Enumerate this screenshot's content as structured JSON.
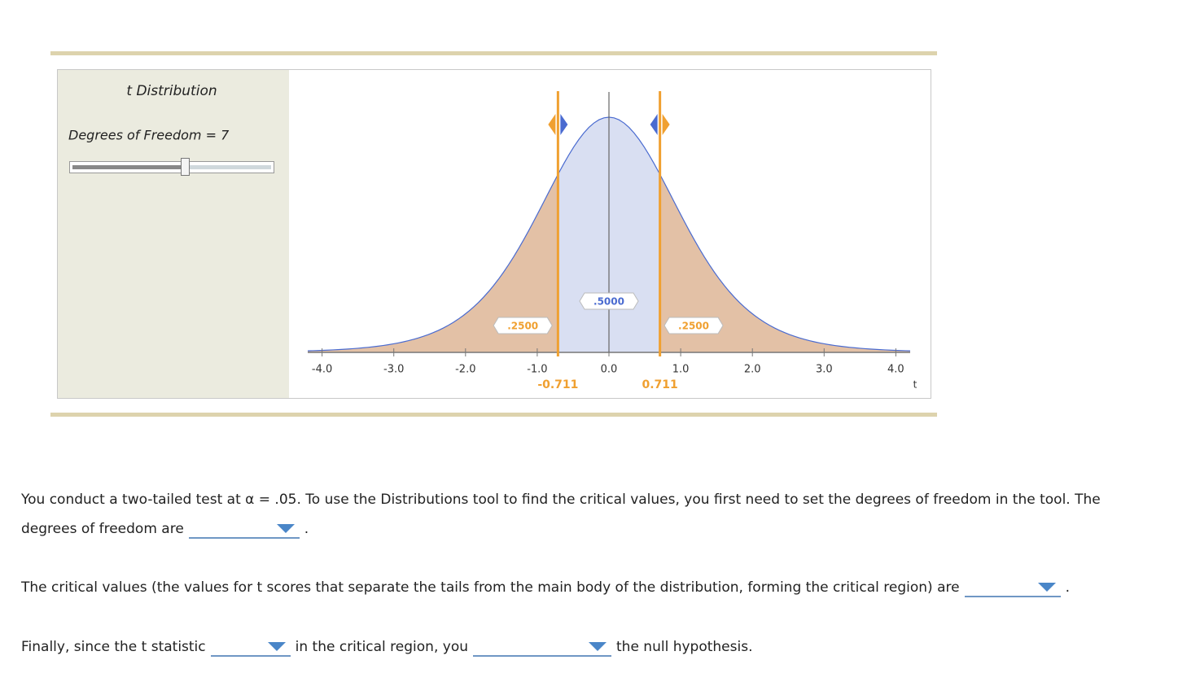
{
  "panel": {
    "title": "t Distribution",
    "df_text": "Degrees of Freedom = 7"
  },
  "chart_data": {
    "type": "density",
    "df": 7,
    "xlim": [
      -4.2,
      4.2
    ],
    "xticks": [
      {
        "value": -4,
        "label": "-4.0"
      },
      {
        "value": -3,
        "label": "-3.0"
      },
      {
        "value": -2,
        "label": "-2.0"
      },
      {
        "value": -1,
        "label": "-1.0"
      },
      {
        "value": 0,
        "label": "0.0"
      },
      {
        "value": 1,
        "label": "1.0"
      },
      {
        "value": 2,
        "label": "2.0"
      },
      {
        "value": 3,
        "label": "3.0"
      },
      {
        "value": 4,
        "label": "4.0"
      }
    ],
    "xlabel": "t",
    "critical": [
      {
        "value": -0.711,
        "label": "-0.711"
      },
      {
        "value": 0.711,
        "label": "0.711"
      }
    ],
    "areas": {
      "values": [
        0.25,
        0.5,
        0.25
      ],
      "value_labels": [
        ".2500",
        ".5000",
        ".2500"
      ],
      "colors": [
        "#e3c1a6",
        "#d9dff2",
        "#e3c1a6"
      ]
    },
    "curve_color": "#4a6bd0",
    "critical_color": "#f0a030"
  },
  "questions": [
    {
      "parts": [
        "You conduct a two-tailed test at α = .05. To use the Distributions tool to find the critical values, you first need to set the degrees of freedom in the tool. The degrees of freedom are",
        "."
      ]
    },
    {
      "parts": [
        "The critical values (the values for t scores that separate the tails from the main body of the distribution, forming the critical region) are",
        "."
      ]
    },
    {
      "parts": [
        "Finally, since the t statistic",
        "in the critical region, you",
        "the null hypothesis."
      ]
    }
  ]
}
